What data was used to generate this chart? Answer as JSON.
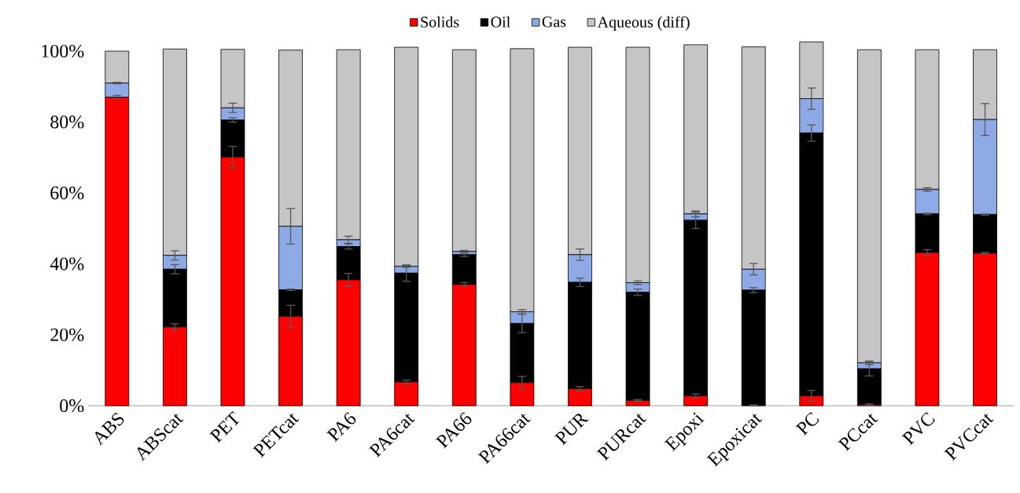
{
  "chart_data": {
    "type": "bar",
    "stacked": true,
    "legend": "top",
    "categories": [
      "ABS",
      "ABScat",
      "PET",
      "PETcat",
      "PA6",
      "PA6cat",
      "PA66",
      "PA66cat",
      "PUR",
      "PURcat",
      "Epoxi",
      "Epoxicat",
      "PC",
      "PCcat",
      "PVC",
      "PVCcat"
    ],
    "ylim": [
      0,
      104
    ],
    "yticks": [
      {
        "value": 0,
        "label": "0%"
      },
      {
        "value": 20,
        "label": "20%"
      },
      {
        "value": 40,
        "label": "40%"
      },
      {
        "value": 60,
        "label": "60%"
      },
      {
        "value": 80,
        "label": "80%"
      },
      {
        "value": 100,
        "label": "100%"
      }
    ],
    "series": [
      {
        "name": "Solids",
        "color": "#ff0000",
        "values": [
          87.0,
          22.2,
          70.1,
          25.2,
          35.5,
          6.7,
          34.2,
          6.5,
          4.8,
          1.5,
          2.8,
          0.1,
          2.8,
          0.3,
          43.2,
          43.0
        ],
        "errors": [
          0.5,
          0.9,
          3.0,
          3.1,
          1.8,
          0.5,
          0.5,
          1.8,
          0.6,
          0.2,
          0.5,
          0.1,
          1.5,
          0.2,
          0.8,
          0.2
        ]
      },
      {
        "name": "Oil",
        "color": "#000000",
        "values": [
          0,
          16.3,
          10.5,
          7.5,
          9.4,
          30.7,
          8.4,
          16.7,
          30.0,
          30.5,
          49.5,
          32.5,
          74.1,
          10.1,
          10.9,
          10.9
        ],
        "errors": [
          null,
          1.3,
          0.6,
          0.2,
          0.7,
          2.3,
          0.5,
          2.6,
          1.2,
          0.9,
          2.3,
          0.7,
          2.3,
          2.0,
          0.2,
          0.2
        ]
      },
      {
        "name": "Gas",
        "color": "#8eaae6",
        "values": [
          4.0,
          3.9,
          3.4,
          17.9,
          1.9,
          1.9,
          0.9,
          3.3,
          7.8,
          2.7,
          1.8,
          5.9,
          9.7,
          1.7,
          6.9,
          26.8
        ],
        "errors": [
          0.2,
          1.3,
          1.3,
          5.0,
          1.0,
          0.3,
          0.3,
          0.6,
          1.6,
          0.5,
          0.8,
          1.6,
          3.0,
          0.5,
          0.5,
          4.5
        ]
      },
      {
        "name": "Aqueous (diff)",
        "color": "#c5c5c5",
        "values": [
          9.0,
          58.2,
          16.5,
          49.7,
          53.6,
          61.8,
          56.9,
          74.2,
          58.5,
          66.4,
          47.7,
          62.7,
          16.0,
          88.3,
          39.4,
          19.7
        ]
      }
    ]
  }
}
